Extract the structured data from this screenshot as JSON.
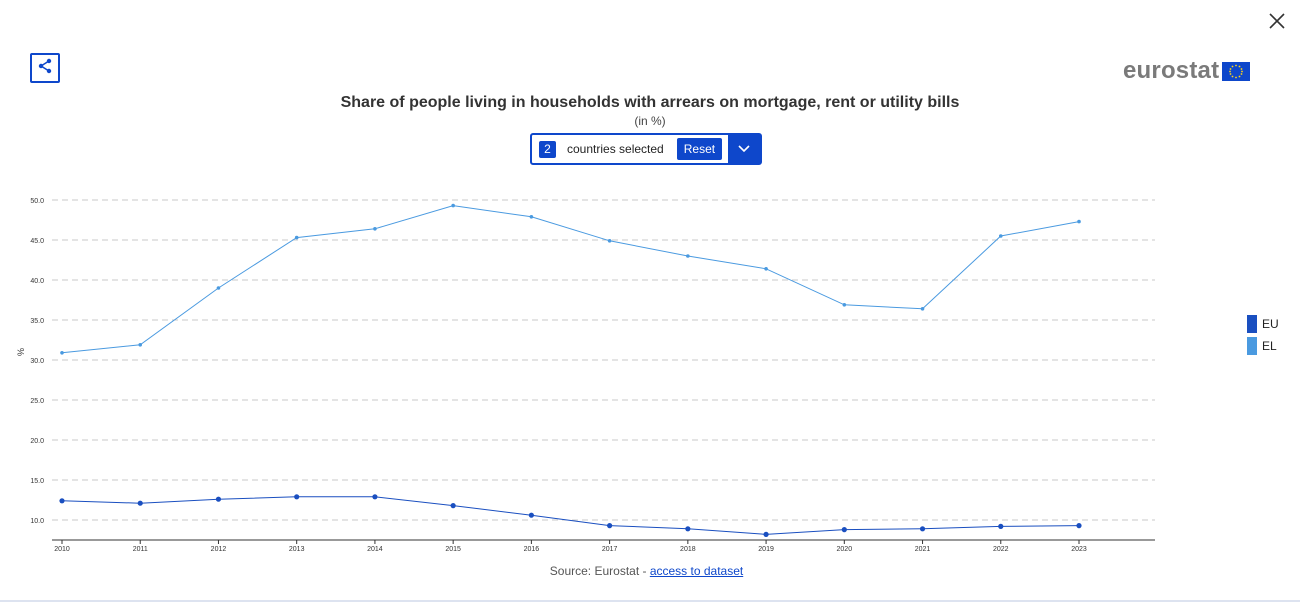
{
  "ui": {
    "logo_text": "eurostat",
    "selector": {
      "count": "2",
      "text": "countries selected",
      "reset_label": "Reset"
    },
    "source": {
      "prefix": "Source: Eurostat - ",
      "link": "access to dataset"
    }
  },
  "colors": {
    "accent": "#0e47cb",
    "eu": "#1a4fc0",
    "el": "#4a9ae0",
    "grid": "#c8c8c8"
  },
  "icons": {
    "close": "close-icon",
    "share": "share-icon",
    "dropdown": "chevron-down-icon"
  },
  "chart_data": {
    "type": "line",
    "title": "Share of people living in households with arrears on mortgage, rent or utility bills",
    "subtitle": "(in %)",
    "xlabel": "",
    "ylabel": "%",
    "x": [
      "2010",
      "2011",
      "2012",
      "2013",
      "2014",
      "2015",
      "2016",
      "2017",
      "2018",
      "2019",
      "2020",
      "2021",
      "2022",
      "2023"
    ],
    "ylim": [
      7.5,
      50
    ],
    "yticks": [
      "10.0",
      "15.0",
      "20.0",
      "25.0",
      "30.0",
      "35.0",
      "40.0",
      "45.0",
      "50.0"
    ],
    "grid": true,
    "legend_position": "right",
    "series": [
      {
        "name": "EU",
        "color": "#1a4fc0",
        "values": [
          12.4,
          12.1,
          12.6,
          12.9,
          12.9,
          11.8,
          10.6,
          9.3,
          8.9,
          8.2,
          8.8,
          8.9,
          9.2,
          9.3
        ]
      },
      {
        "name": "EL",
        "color": "#4a9ae0",
        "values": [
          30.9,
          31.9,
          39.0,
          45.3,
          46.4,
          49.3,
          47.9,
          44.9,
          43.0,
          41.4,
          36.9,
          36.4,
          45.5,
          47.3
        ]
      }
    ]
  }
}
